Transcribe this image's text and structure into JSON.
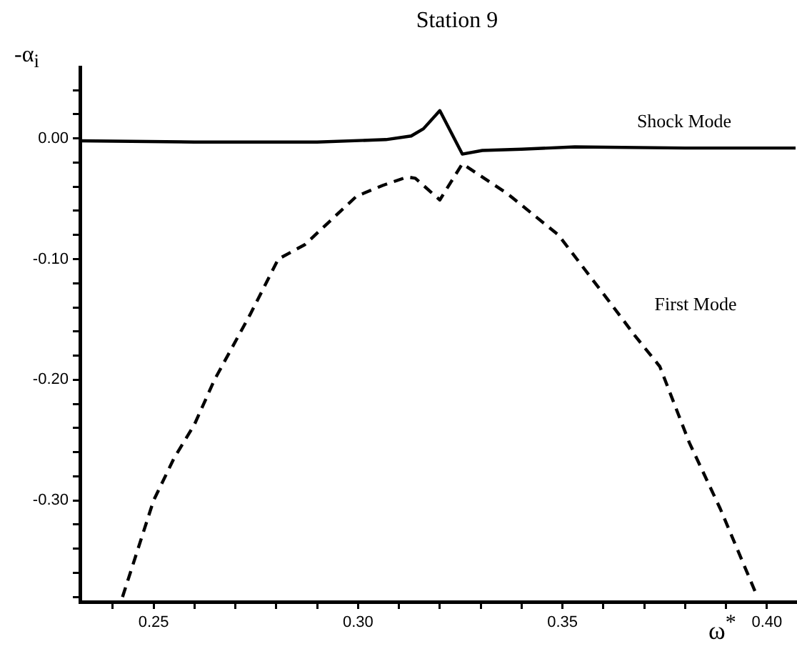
{
  "chart_data": {
    "type": "line",
    "title": "Station 9",
    "xlabel": "ω$^{*}$",
    "ylabel": "-α$_{i}$",
    "xlim": [
      0.232,
      0.407
    ],
    "ylim": [
      -0.384,
      0.059
    ],
    "xticks": [
      {
        "value": 0.24,
        "label": null
      },
      {
        "value": 0.25,
        "label": "0.25"
      },
      {
        "value": 0.26,
        "label": null
      },
      {
        "value": 0.27,
        "label": null
      },
      {
        "value": 0.28,
        "label": null
      },
      {
        "value": 0.29,
        "label": null
      },
      {
        "value": 0.3,
        "label": "0.30"
      },
      {
        "value": 0.31,
        "label": null
      },
      {
        "value": 0.32,
        "label": null
      },
      {
        "value": 0.33,
        "label": null
      },
      {
        "value": 0.34,
        "label": null
      },
      {
        "value": 0.35,
        "label": "0.35"
      },
      {
        "value": 0.36,
        "label": null
      },
      {
        "value": 0.37,
        "label": null
      },
      {
        "value": 0.38,
        "label": null
      },
      {
        "value": 0.39,
        "label": null
      },
      {
        "value": 0.4,
        "label": "0.40"
      }
    ],
    "yticks": [
      {
        "value": -0.38,
        "label": null
      },
      {
        "value": -0.36,
        "label": null
      },
      {
        "value": -0.34,
        "label": null
      },
      {
        "value": -0.32,
        "label": null
      },
      {
        "value": -0.3,
        "label": "-0.30"
      },
      {
        "value": -0.28,
        "label": null
      },
      {
        "value": -0.26,
        "label": null
      },
      {
        "value": -0.24,
        "label": null
      },
      {
        "value": -0.22,
        "label": null
      },
      {
        "value": -0.2,
        "label": "-0.20"
      },
      {
        "value": -0.18,
        "label": null
      },
      {
        "value": -0.16,
        "label": null
      },
      {
        "value": -0.14,
        "label": null
      },
      {
        "value": -0.12,
        "label": null
      },
      {
        "value": -0.1,
        "label": "-0.10"
      },
      {
        "value": -0.08,
        "label": null
      },
      {
        "value": -0.06,
        "label": null
      },
      {
        "value": -0.04,
        "label": null
      },
      {
        "value": -0.02,
        "label": null
      },
      {
        "value": 0,
        "label": "0.00"
      },
      {
        "value": 0.02,
        "label": null
      },
      {
        "value": 0.04,
        "label": null
      }
    ],
    "grid": false,
    "legend": false,
    "marker": "none",
    "series": [
      {
        "color": "#000000",
        "line_style": "solid",
        "x": [
          0.232,
          0.26,
          0.29,
          0.3068,
          0.313,
          0.316,
          0.32,
          0.3255,
          0.3304,
          0.34,
          0.353,
          0.38,
          0.407
        ],
        "values": [
          -0.002,
          -0.003,
          -0.003,
          -0.001,
          0.002,
          0.008,
          0.023,
          -0.013,
          -0.01,
          -0.009,
          -0.007,
          -0.008,
          -0.008
        ]
      },
      {
        "color": "#000000",
        "line_style": "dashed",
        "x": [
          0.2424,
          0.25,
          0.255,
          0.26,
          0.2649,
          0.2736,
          0.2805,
          0.287,
          0.2996,
          0.306,
          0.312,
          0.314,
          0.32,
          0.3255,
          0.3366,
          0.349,
          0.3614,
          0.3676,
          0.3738,
          0.381,
          0.3886,
          0.3973,
          0.3975
        ],
        "values": [
          -0.38,
          -0.3,
          -0.265,
          -0.237,
          -0.2,
          -0.146,
          -0.1,
          -0.088,
          -0.048,
          -0.039,
          -0.032,
          -0.033,
          -0.051,
          -0.021,
          -0.046,
          -0.08,
          -0.135,
          -0.163,
          -0.189,
          -0.252,
          -0.307,
          -0.377,
          -0.38
        ]
      }
    ],
    "annotations": [
      "Shock Mode",
      "First Mode"
    ]
  }
}
